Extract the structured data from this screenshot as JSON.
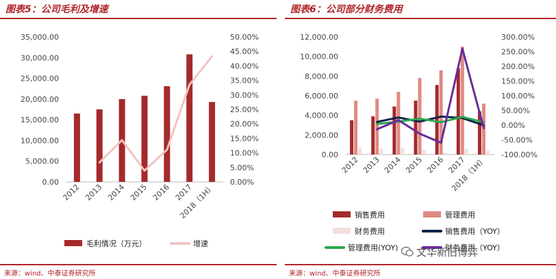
{
  "left": {
    "title": "图表5：公司毛利及增速",
    "source": "来源：wind、中泰证券研究所"
  },
  "right": {
    "title": "图表6：公司部分财务费用",
    "source": "来源：wind、中泰证券研究所"
  },
  "watermark": "文华新旧博弈",
  "colors": {
    "accent": "#b0242a",
    "gross_profit_bar": "#a52a2a",
    "growth_line": "#f2c4c4",
    "sales_expense": "#a52a2a",
    "admin_expense": "#e08a84",
    "finance_expense": "#f6dede",
    "sales_yoy": "#0c2248",
    "admin_yoy": "#2aa84e",
    "finance_yoy": "#6a2c9a"
  },
  "chart_data": [
    {
      "type": "bar",
      "categories": [
        "2012",
        "2013",
        "2014",
        "2015",
        "2016",
        "2017",
        "2018（1H）"
      ],
      "series": [
        {
          "name": "毛利情况（万元）",
          "type": "bar",
          "axis": "left",
          "values": [
            16500,
            17500,
            20000,
            20800,
            23100,
            30800,
            19300
          ]
        },
        {
          "name": "增速",
          "type": "line",
          "axis": "right",
          "values": [
            null,
            6.7,
            14.4,
            3.9,
            11.1,
            33.5,
            43.3
          ]
        }
      ],
      "y_left": {
        "ylim": [
          0,
          35000
        ],
        "ticks": [
          "0.00",
          "5,000.00",
          "10,000.00",
          "15,000.00",
          "20,000.00",
          "25,000.00",
          "30,000.00",
          "35,000.00"
        ]
      },
      "y_right": {
        "ylim": [
          0,
          50
        ],
        "ticks": [
          "0.00%",
          "5.00%",
          "10.00%",
          "15.00%",
          "20.00%",
          "25.00%",
          "30.00%",
          "35.00%",
          "40.00%",
          "45.00%",
          "50.00%"
        ]
      },
      "grid": false,
      "legend": "bottom"
    },
    {
      "type": "bar",
      "categories": [
        "2012",
        "2013",
        "2014",
        "2015",
        "2016",
        "2017",
        "2018（1H）"
      ],
      "series": [
        {
          "name": "销售费用",
          "type": "bar",
          "axis": "left",
          "values": [
            3500,
            3900,
            4900,
            5500,
            7100,
            8800,
            4400
          ]
        },
        {
          "name": "管理费用",
          "type": "bar",
          "axis": "left",
          "values": [
            5500,
            5700,
            6400,
            7800,
            8600,
            11000,
            5200
          ]
        },
        {
          "name": "财务费用",
          "type": "bar",
          "axis": "left",
          "values": [
            700,
            600,
            700,
            500,
            200,
            600,
            400
          ]
        },
        {
          "name": "销售费用（YOY）",
          "type": "line",
          "axis": "right",
          "values": [
            null,
            11,
            26,
            12,
            29,
            24,
            -0.5
          ]
        },
        {
          "name": "管理费用(YOY)",
          "type": "line",
          "axis": "right",
          "values": [
            null,
            4,
            12,
            22,
            10,
            28,
            10
          ]
        },
        {
          "name": "财务费用（YOY）",
          "type": "line",
          "axis": "right",
          "values": [
            null,
            -14,
            17,
            -29,
            -60,
            260,
            -10
          ]
        }
      ],
      "y_left": {
        "ylim": [
          0,
          12000
        ],
        "ticks": [
          "0.00",
          "2,000.00",
          "4,000.00",
          "6,000.00",
          "8,000.00",
          "10,000.00",
          "12,000.00"
        ]
      },
      "y_right": {
        "ylim": [
          -100,
          300
        ],
        "ticks": [
          "-100.00%",
          "-50.00%",
          "0.00%",
          "50.00%",
          "100.00%",
          "150.00%",
          "200.00%",
          "250.00%",
          "300.00%"
        ]
      },
      "grid": false,
      "legend": "bottom"
    }
  ]
}
